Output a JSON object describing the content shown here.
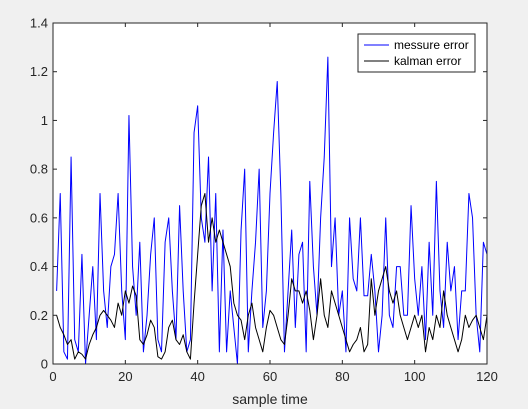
{
  "chart_data": {
    "type": "line",
    "title": "",
    "xlabel": "sample time",
    "ylabel": "",
    "xlim": [
      0,
      120
    ],
    "ylim": [
      0,
      1.4
    ],
    "xticks": [
      0,
      20,
      40,
      60,
      80,
      100,
      120
    ],
    "xtick_labels": [
      "0",
      "20",
      "40",
      "60",
      "80",
      "100",
      "120"
    ],
    "yticks": [
      0,
      0.2,
      0.4,
      0.6,
      0.8,
      1,
      1.2,
      1.4
    ],
    "ytick_labels": [
      "0",
      "0.2",
      "0.4",
      "0.6",
      "0.8",
      "1",
      "1.2",
      "1.4"
    ],
    "grid": false,
    "legend": "top-right",
    "x": [
      1,
      2,
      3,
      4,
      5,
      6,
      7,
      8,
      9,
      10,
      11,
      12,
      13,
      14,
      15,
      16,
      17,
      18,
      19,
      20,
      21,
      22,
      23,
      24,
      25,
      26,
      27,
      28,
      29,
      30,
      31,
      32,
      33,
      34,
      35,
      36,
      37,
      38,
      39,
      40,
      41,
      42,
      43,
      44,
      45,
      46,
      47,
      48,
      49,
      50,
      51,
      52,
      53,
      54,
      55,
      56,
      57,
      58,
      59,
      60,
      61,
      62,
      63,
      64,
      65,
      66,
      67,
      68,
      69,
      70,
      71,
      72,
      73,
      74,
      75,
      76,
      77,
      78,
      79,
      80,
      81,
      82,
      83,
      84,
      85,
      86,
      87,
      88,
      89,
      90,
      91,
      92,
      93,
      94,
      95,
      96,
      97,
      98,
      99,
      100,
      101,
      102,
      103,
      104,
      105,
      106,
      107,
      108,
      109,
      110,
      111,
      112,
      113,
      114,
      115,
      116,
      117,
      118,
      119,
      120
    ],
    "series": [
      {
        "name": "messure error",
        "color": "#0000ff",
        "values": [
          0.3,
          0.7,
          0.05,
          0.02,
          0.85,
          0.1,
          0.05,
          0.45,
          0.0,
          0.2,
          0.4,
          0.1,
          0.7,
          0.3,
          0.15,
          0.4,
          0.45,
          0.7,
          0.3,
          0.1,
          1.02,
          0.4,
          0.2,
          0.5,
          0.05,
          0.2,
          0.45,
          0.6,
          0.1,
          0.05,
          0.5,
          0.6,
          0.3,
          0.1,
          0.65,
          0.3,
          0.05,
          0.1,
          0.95,
          1.06,
          0.6,
          0.5,
          0.85,
          0.3,
          0.7,
          0.05,
          0.55,
          0.05,
          0.3,
          0.15,
          0.0,
          0.55,
          0.8,
          0.05,
          0.3,
          0.5,
          0.8,
          0.15,
          0.3,
          0.7,
          0.95,
          1.16,
          0.7,
          0.05,
          0.3,
          0.55,
          0.15,
          0.45,
          0.5,
          0.05,
          0.75,
          0.4,
          0.2,
          0.6,
          0.85,
          1.26,
          0.4,
          0.6,
          0.2,
          0.3,
          0.05,
          0.6,
          0.35,
          0.3,
          0.6,
          0.28,
          0.28,
          0.45,
          0.3,
          0.05,
          0.2,
          0.6,
          0.2,
          0.15,
          0.4,
          0.4,
          0.2,
          0.2,
          0.65,
          0.35,
          0.2,
          0.4,
          0.1,
          0.5,
          0.2,
          0.75,
          0.3,
          0.15,
          0.5,
          0.3,
          0.4,
          0.1,
          0.3,
          0.3,
          0.7,
          0.6,
          0.2,
          0.05,
          0.5,
          0.45
        ]
      },
      {
        "name": "kalman error",
        "color": "#000000",
        "values": [
          0.2,
          0.15,
          0.12,
          0.08,
          0.1,
          0.02,
          0.05,
          0.04,
          0.02,
          0.08,
          0.12,
          0.15,
          0.2,
          0.22,
          0.2,
          0.18,
          0.15,
          0.25,
          0.2,
          0.3,
          0.25,
          0.32,
          0.28,
          0.1,
          0.08,
          0.12,
          0.18,
          0.15,
          0.03,
          0.02,
          0.05,
          0.15,
          0.18,
          0.1,
          0.08,
          0.12,
          0.05,
          0.02,
          0.25,
          0.45,
          0.65,
          0.7,
          0.5,
          0.6,
          0.5,
          0.55,
          0.5,
          0.45,
          0.4,
          0.25,
          0.2,
          0.18,
          0.1,
          0.2,
          0.25,
          0.15,
          0.1,
          0.05,
          0.15,
          0.22,
          0.2,
          0.15,
          0.1,
          0.08,
          0.2,
          0.35,
          0.3,
          0.3,
          0.25,
          0.3,
          0.22,
          0.1,
          0.2,
          0.35,
          0.2,
          0.15,
          0.3,
          0.25,
          0.2,
          0.15,
          0.1,
          0.05,
          0.08,
          0.1,
          0.15,
          0.05,
          0.08,
          0.35,
          0.2,
          0.3,
          0.35,
          0.4,
          0.3,
          0.25,
          0.3,
          0.2,
          0.15,
          0.1,
          0.15,
          0.2,
          0.15,
          0.2,
          0.05,
          0.15,
          0.1,
          0.2,
          0.15,
          0.3,
          0.2,
          0.15,
          0.1,
          0.05,
          0.1,
          0.2,
          0.15,
          0.18,
          0.2,
          0.15,
          0.1,
          0.2
        ]
      }
    ]
  }
}
